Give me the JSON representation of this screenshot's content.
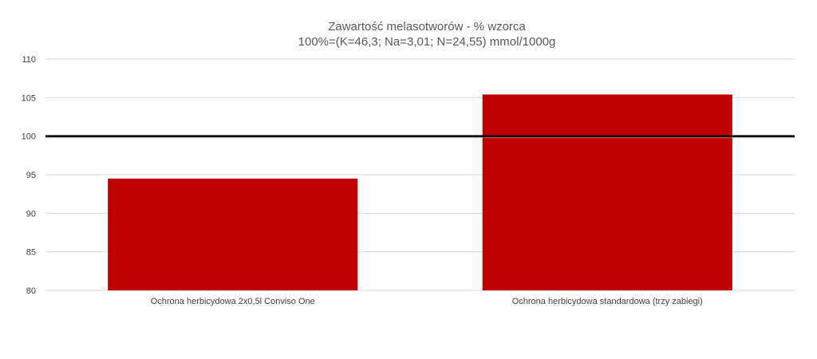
{
  "chart_data": {
    "type": "bar",
    "title": "Zawartość melasotworów - % wzorca",
    "subtitle": "100%=(K=46,3; Na=3,01; N=24,55) mmol/1000g",
    "categories": [
      "Ochrona herbicydowa 2x0,5l Conviso One",
      "Ochrona herbicydowa standardowa (trzy zabiegi)"
    ],
    "values": [
      94.5,
      105.4
    ],
    "ylim": [
      80,
      110
    ],
    "yticks": [
      80,
      85,
      90,
      95,
      100,
      105,
      110
    ],
    "ytick_labels": [
      "80",
      "85",
      "90",
      "95",
      "100",
      "105",
      "110"
    ],
    "reference_line": 100,
    "grid": true,
    "xlabel": "",
    "ylabel": "",
    "bar_color": "#c00000",
    "reference_line_color": "#000000",
    "grid_color": "#d9d9d9"
  }
}
